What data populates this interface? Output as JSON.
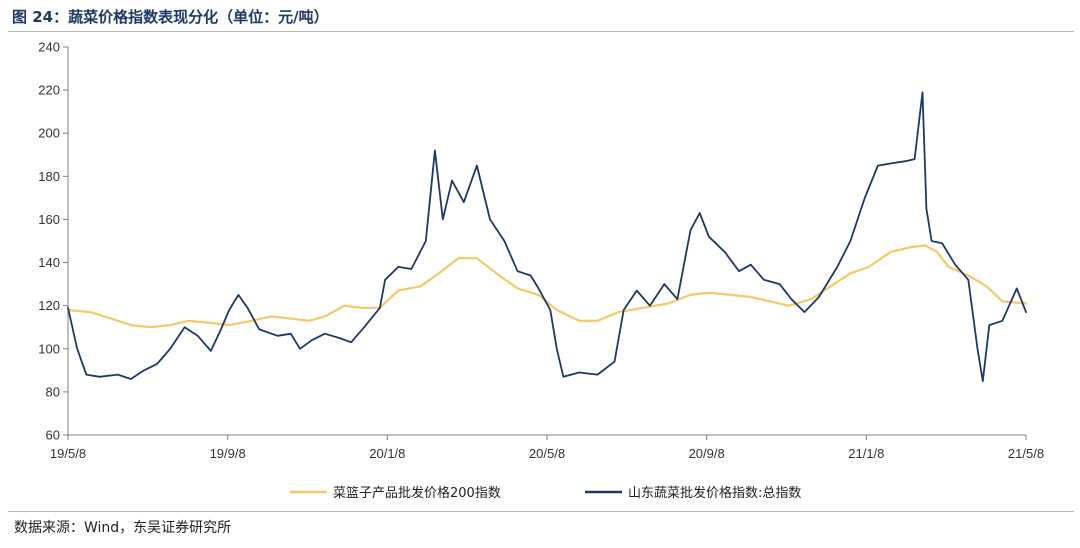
{
  "header": {
    "title": "图 24：蔬菜价格指数表现分化（单位：元/吨）"
  },
  "footer": {
    "source": "数据来源：Wind，东吴证券研究所"
  },
  "chart_data": {
    "type": "line",
    "title": "",
    "xlabel": "",
    "ylabel": "",
    "ylim": [
      60,
      240
    ],
    "yticks": [
      60,
      80,
      100,
      120,
      140,
      160,
      180,
      200,
      220,
      240
    ],
    "xticks": [
      "19/5/8",
      "19/9/8",
      "20/1/8",
      "20/5/8",
      "20/9/8",
      "21/1/8",
      "21/5/8"
    ],
    "x_start": "2019-05-08",
    "x_end": "2021-05-08",
    "grid": false,
    "legend_position": "bottom",
    "series": [
      {
        "name": "菜篮子产品批发价格200指数",
        "color": "#f5c86a",
        "points": [
          [
            "2019-05-08",
            118
          ],
          [
            "2019-05-25",
            117
          ],
          [
            "2019-06-10",
            114
          ],
          [
            "2019-06-25",
            111
          ],
          [
            "2019-07-10",
            110
          ],
          [
            "2019-07-25",
            111
          ],
          [
            "2019-08-08",
            113
          ],
          [
            "2019-08-25",
            112
          ],
          [
            "2019-09-08",
            111
          ],
          [
            "2019-09-25",
            113
          ],
          [
            "2019-10-10",
            115
          ],
          [
            "2019-10-25",
            114
          ],
          [
            "2019-11-08",
            113
          ],
          [
            "2019-11-20",
            115
          ],
          [
            "2019-12-05",
            120
          ],
          [
            "2019-12-18",
            119
          ],
          [
            "2020-01-01",
            119
          ],
          [
            "2020-01-15",
            127
          ],
          [
            "2020-02-01",
            129
          ],
          [
            "2020-02-15",
            135
          ],
          [
            "2020-03-01",
            142
          ],
          [
            "2020-03-15",
            142
          ],
          [
            "2020-04-01",
            134
          ],
          [
            "2020-04-15",
            128
          ],
          [
            "2020-05-01",
            125
          ],
          [
            "2020-05-15",
            118
          ],
          [
            "2020-06-01",
            113
          ],
          [
            "2020-06-15",
            113
          ],
          [
            "2020-07-01",
            117
          ],
          [
            "2020-07-20",
            119
          ],
          [
            "2020-08-08",
            121
          ],
          [
            "2020-08-25",
            125
          ],
          [
            "2020-09-08",
            126
          ],
          [
            "2020-09-25",
            125
          ],
          [
            "2020-10-10",
            124
          ],
          [
            "2020-10-25",
            122
          ],
          [
            "2020-11-08",
            120
          ],
          [
            "2020-11-25",
            123
          ],
          [
            "2020-12-10",
            129
          ],
          [
            "2020-12-25",
            135
          ],
          [
            "2021-01-08",
            138
          ],
          [
            "2021-01-25",
            145
          ],
          [
            "2021-02-08",
            147
          ],
          [
            "2021-02-20",
            148
          ],
          [
            "2021-03-01",
            145
          ],
          [
            "2021-03-10",
            138
          ],
          [
            "2021-03-25",
            134
          ],
          [
            "2021-04-08",
            129
          ],
          [
            "2021-04-20",
            122
          ],
          [
            "2021-05-08",
            121
          ]
        ]
      },
      {
        "name": "山东蔬菜批发价格指数:总指数",
        "color": "#1f3864",
        "points": [
          [
            "2019-05-08",
            119
          ],
          [
            "2019-05-15",
            100
          ],
          [
            "2019-05-22",
            88
          ],
          [
            "2019-06-01",
            87
          ],
          [
            "2019-06-15",
            88
          ],
          [
            "2019-06-25",
            86
          ],
          [
            "2019-07-05",
            90
          ],
          [
            "2019-07-15",
            93
          ],
          [
            "2019-07-25",
            100
          ],
          [
            "2019-08-05",
            110
          ],
          [
            "2019-08-15",
            106
          ],
          [
            "2019-08-25",
            99
          ],
          [
            "2019-09-01",
            108
          ],
          [
            "2019-09-08",
            118
          ],
          [
            "2019-09-15",
            125
          ],
          [
            "2019-09-22",
            119
          ],
          [
            "2019-10-01",
            109
          ],
          [
            "2019-10-15",
            106
          ],
          [
            "2019-10-25",
            107
          ],
          [
            "2019-11-01",
            100
          ],
          [
            "2019-11-10",
            104
          ],
          [
            "2019-11-20",
            107
          ],
          [
            "2019-12-01",
            105
          ],
          [
            "2019-12-10",
            103
          ],
          [
            "2019-12-20",
            110
          ],
          [
            "2020-01-01",
            119
          ],
          [
            "2020-01-05",
            132
          ],
          [
            "2020-01-15",
            138
          ],
          [
            "2020-01-25",
            137
          ],
          [
            "2020-02-05",
            150
          ],
          [
            "2020-02-12",
            192
          ],
          [
            "2020-02-18",
            160
          ],
          [
            "2020-02-25",
            178
          ],
          [
            "2020-03-05",
            168
          ],
          [
            "2020-03-15",
            185
          ],
          [
            "2020-03-25",
            160
          ],
          [
            "2020-04-05",
            150
          ],
          [
            "2020-04-15",
            136
          ],
          [
            "2020-04-25",
            134
          ],
          [
            "2020-05-01",
            128
          ],
          [
            "2020-05-10",
            118
          ],
          [
            "2020-05-15",
            100
          ],
          [
            "2020-05-20",
            87
          ],
          [
            "2020-06-01",
            89
          ],
          [
            "2020-06-15",
            88
          ],
          [
            "2020-06-28",
            94
          ],
          [
            "2020-07-05",
            118
          ],
          [
            "2020-07-15",
            127
          ],
          [
            "2020-07-25",
            120
          ],
          [
            "2020-08-05",
            130
          ],
          [
            "2020-08-15",
            123
          ],
          [
            "2020-08-25",
            155
          ],
          [
            "2020-09-01",
            163
          ],
          [
            "2020-09-08",
            152
          ],
          [
            "2020-09-20",
            145
          ],
          [
            "2020-10-01",
            136
          ],
          [
            "2020-10-10",
            139
          ],
          [
            "2020-10-20",
            132
          ],
          [
            "2020-11-01",
            130
          ],
          [
            "2020-11-10",
            123
          ],
          [
            "2020-11-20",
            117
          ],
          [
            "2020-12-01",
            124
          ],
          [
            "2020-12-15",
            138
          ],
          [
            "2020-12-25",
            150
          ],
          [
            "2021-01-05",
            170
          ],
          [
            "2021-01-15",
            185
          ],
          [
            "2021-01-25",
            186
          ],
          [
            "2021-02-05",
            187
          ],
          [
            "2021-02-12",
            188
          ],
          [
            "2021-02-18",
            219
          ],
          [
            "2021-02-21",
            165
          ],
          [
            "2021-02-25",
            150
          ],
          [
            "2021-03-05",
            149
          ],
          [
            "2021-03-15",
            139
          ],
          [
            "2021-03-25",
            132
          ],
          [
            "2021-04-01",
            100
          ],
          [
            "2021-04-05",
            85
          ],
          [
            "2021-04-10",
            111
          ],
          [
            "2021-04-20",
            113
          ],
          [
            "2021-05-01",
            128
          ],
          [
            "2021-05-08",
            117
          ]
        ]
      }
    ]
  }
}
